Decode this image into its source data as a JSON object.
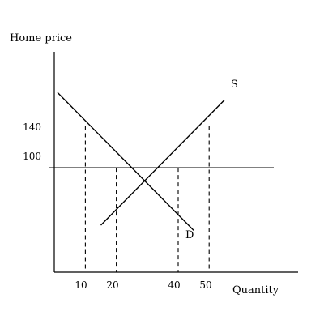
{
  "chart_data": {
    "type": "line",
    "ylabel": "Home price",
    "xlabel": "Quantity",
    "y_ticks": [
      "140",
      "100"
    ],
    "x_ticks": [
      "10",
      "20",
      "40",
      "50"
    ],
    "price_levels": [
      140,
      100
    ],
    "series": [
      {
        "name": "S",
        "x": [
          15,
          55
        ],
        "y": [
          45,
          165
        ]
      },
      {
        "name": "D",
        "x": [
          1,
          45
        ],
        "y": [
          172,
          40
        ]
      }
    ],
    "reference_points": [
      {
        "x": 10,
        "y": 140
      },
      {
        "x": 20,
        "y": 100
      },
      {
        "x": 40,
        "y": 100
      },
      {
        "x": 50,
        "y": 140
      }
    ],
    "xlim": [
      -10,
      70
    ],
    "ylim": [
      0,
      200
    ],
    "grid": false
  }
}
